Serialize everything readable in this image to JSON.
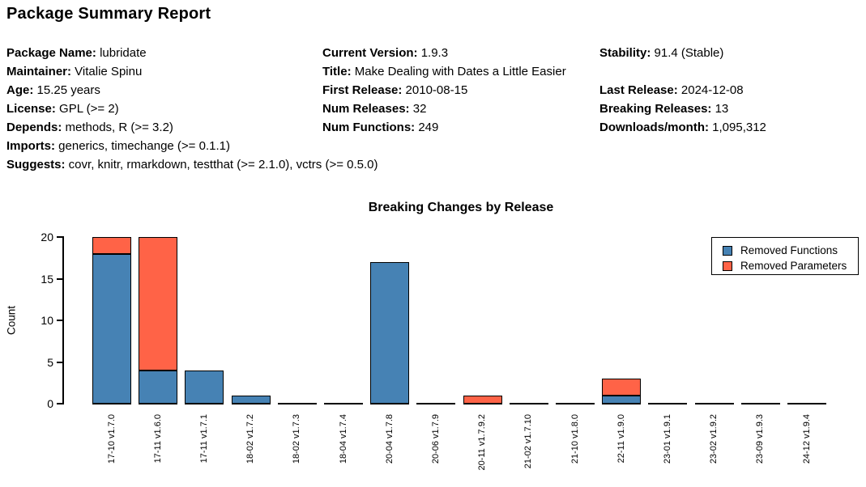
{
  "header": {
    "title": "Package Summary Report"
  },
  "metadata": {
    "rows": [
      [
        {
          "label": "Package Name:",
          "value": "lubridate"
        },
        {
          "label": "Current Version:",
          "value": "1.9.3"
        },
        {
          "label": "Stability:",
          "value": "91.4 (Stable)"
        }
      ],
      [
        {
          "label": "Maintainer:",
          "value": "Vitalie Spinu"
        },
        {
          "label": "Title:",
          "value": "Make Dealing with Dates a Little Easier"
        },
        null
      ],
      [
        {
          "label": "Age:",
          "value": "15.25 years"
        },
        {
          "label": "First Release:",
          "value": "2010-08-15"
        },
        {
          "label": "Last Release:",
          "value": "2024-12-08"
        }
      ],
      [
        {
          "label": "License:",
          "value": "GPL (>= 2)"
        },
        {
          "label": "Num Releases:",
          "value": "32"
        },
        {
          "label": "Breaking Releases:",
          "value": "13"
        }
      ],
      [
        {
          "label": "Depends:",
          "value": "methods, R (>= 3.2)"
        },
        {
          "label": "Num Functions:",
          "value": "249"
        },
        {
          "label": "Downloads/month:",
          "value": "1,095,312"
        }
      ],
      [
        {
          "label": "Imports:",
          "value": "generics, timechange (>= 0.1.1)"
        },
        null,
        null
      ],
      [
        {
          "label": "Suggests:",
          "value": "covr, knitr, rmarkdown, testthat (>= 2.1.0), vctrs (>= 0.5.0)"
        },
        null,
        null
      ]
    ]
  },
  "chart_data": {
    "type": "bar",
    "stacked": true,
    "title": "Breaking Changes by Release",
    "xlabel": "",
    "ylabel": "Count",
    "ylim": [
      0,
      20
    ],
    "yticks": [
      0,
      5,
      10,
      15,
      20
    ],
    "grid": false,
    "legend_position": "top-right",
    "categories": [
      "17-10 v1.7.0",
      "17-11 v1.6.0",
      "17-11 v1.7.1",
      "18-02 v1.7.2",
      "18-02 v1.7.3",
      "18-04 v1.7.4",
      "20-04 v1.7.8",
      "20-06 v1.7.9",
      "20-11 v1.7.9.2",
      "21-02 v1.7.10",
      "21-10 v1.8.0",
      "22-11 v1.9.0",
      "23-01 v1.9.1",
      "23-02 v1.9.2",
      "23-09 v1.9.3",
      "24-12 v1.9.4"
    ],
    "series": [
      {
        "name": "Removed Functions",
        "color": "#4682B4",
        "values": [
          18,
          4,
          4,
          1,
          0,
          0,
          17,
          0,
          0,
          0,
          0,
          1,
          0,
          0,
          0,
          0
        ]
      },
      {
        "name": "Removed Parameters",
        "color": "#FF6347",
        "values": [
          2,
          16,
          0,
          0,
          0,
          0,
          0,
          0,
          1,
          0,
          0,
          2,
          0,
          0,
          0,
          0
        ]
      }
    ]
  }
}
